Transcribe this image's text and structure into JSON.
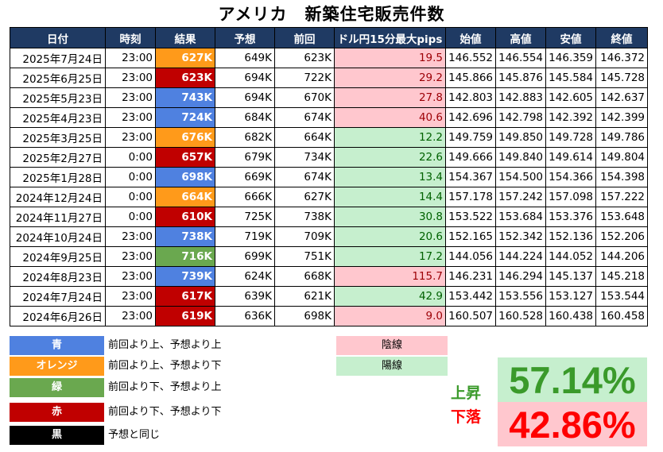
{
  "title": "アメリカ　新築住宅販売件数",
  "headers": [
    "日付",
    "時刻",
    "結果",
    "予想",
    "前回",
    "ドル円15分最大pips",
    "始値",
    "高値",
    "安値",
    "終値"
  ],
  "rows": [
    {
      "date": "2025年7月24日",
      "time": "23:00",
      "result": "627K",
      "result_color": "orange",
      "forecast": "649K",
      "previous": "623K",
      "pips": "19.5",
      "pips_type": "neg",
      "open": "146.552",
      "high": "146.554",
      "low": "146.359",
      "close": "146.372"
    },
    {
      "date": "2025年6月25日",
      "time": "23:00",
      "result": "623K",
      "result_color": "red",
      "forecast": "694K",
      "previous": "722K",
      "pips": "29.2",
      "pips_type": "neg",
      "open": "145.866",
      "high": "145.876",
      "low": "145.584",
      "close": "145.728"
    },
    {
      "date": "2025年5月23日",
      "time": "23:00",
      "result": "743K",
      "result_color": "blue",
      "forecast": "694K",
      "previous": "670K",
      "pips": "27.8",
      "pips_type": "neg",
      "open": "142.803",
      "high": "142.883",
      "low": "142.605",
      "close": "142.637"
    },
    {
      "date": "2025年4月23日",
      "time": "23:00",
      "result": "724K",
      "result_color": "blue",
      "forecast": "684K",
      "previous": "674K",
      "pips": "40.6",
      "pips_type": "neg",
      "open": "142.696",
      "high": "142.798",
      "low": "142.392",
      "close": "142.399"
    },
    {
      "date": "2025年3月25日",
      "time": "23:00",
      "result": "676K",
      "result_color": "orange",
      "forecast": "682K",
      "previous": "664K",
      "pips": "12.2",
      "pips_type": "pos",
      "open": "149.759",
      "high": "149.850",
      "low": "149.728",
      "close": "149.786"
    },
    {
      "date": "2025年2月27日",
      "time": "0:00",
      "result": "657K",
      "result_color": "red",
      "forecast": "679K",
      "previous": "734K",
      "pips": "22.6",
      "pips_type": "pos",
      "open": "149.666",
      "high": "149.840",
      "low": "149.614",
      "close": "149.804"
    },
    {
      "date": "2025年1月28日",
      "time": "0:00",
      "result": "698K",
      "result_color": "blue",
      "forecast": "669K",
      "previous": "674K",
      "pips": "13.4",
      "pips_type": "pos",
      "open": "154.367",
      "high": "154.500",
      "low": "154.366",
      "close": "154.398"
    },
    {
      "date": "2024年12月24日",
      "time": "0:00",
      "result": "664K",
      "result_color": "orange",
      "forecast": "666K",
      "previous": "627K",
      "pips": "14.4",
      "pips_type": "pos",
      "open": "157.178",
      "high": "157.242",
      "low": "157.098",
      "close": "157.222"
    },
    {
      "date": "2024年11月27日",
      "time": "0:00",
      "result": "610K",
      "result_color": "red",
      "forecast": "725K",
      "previous": "738K",
      "pips": "30.8",
      "pips_type": "pos",
      "open": "153.522",
      "high": "153.684",
      "low": "153.376",
      "close": "153.648"
    },
    {
      "date": "2024年10月24日",
      "time": "23:00",
      "result": "738K",
      "result_color": "blue",
      "forecast": "719K",
      "previous": "709K",
      "pips": "20.6",
      "pips_type": "pos",
      "open": "152.165",
      "high": "152.342",
      "low": "152.136",
      "close": "152.206"
    },
    {
      "date": "2024年9月25日",
      "time": "23:00",
      "result": "716K",
      "result_color": "green",
      "forecast": "699K",
      "previous": "751K",
      "pips": "17.2",
      "pips_type": "pos",
      "open": "144.056",
      "high": "144.224",
      "low": "144.052",
      "close": "144.206"
    },
    {
      "date": "2024年8月23日",
      "time": "23:00",
      "result": "739K",
      "result_color": "blue",
      "forecast": "624K",
      "previous": "668K",
      "pips": "115.7",
      "pips_type": "neg",
      "open": "146.231",
      "high": "146.294",
      "low": "145.137",
      "close": "145.218"
    },
    {
      "date": "2024年7月24日",
      "time": "23:00",
      "result": "617K",
      "result_color": "red",
      "forecast": "639K",
      "previous": "621K",
      "pips": "42.9",
      "pips_type": "pos",
      "open": "153.442",
      "high": "153.556",
      "low": "153.127",
      "close": "153.544"
    },
    {
      "date": "2024年6月26日",
      "time": "23:00",
      "result": "619K",
      "result_color": "red",
      "forecast": "636K",
      "previous": "698K",
      "pips": "9.0",
      "pips_type": "neg",
      "open": "160.507",
      "high": "160.528",
      "low": "160.438",
      "close": "160.458"
    }
  ],
  "legend": [
    {
      "color": "blue",
      "label": "青",
      "text": "前回より上、予想より上"
    },
    {
      "color": "orange",
      "label": "オレンジ",
      "text": "前回より上、予想より下"
    },
    {
      "color": "green",
      "label": "緑",
      "text": "前回より下、予想より上"
    },
    {
      "color": "red",
      "label": "赤",
      "text": "前回より下、予想より下"
    },
    {
      "color": "black",
      "label": "黒",
      "text": "予想と同じ"
    }
  ],
  "candles": {
    "negative": "陰線",
    "positive": "陽線"
  },
  "stats": {
    "up_label": "上昇",
    "up_value": "57.14%",
    "down_label": "下落",
    "down_value": "42.86%"
  },
  "colors": {
    "header_bg": "#1f3a63",
    "blue": "#4f81e0",
    "orange": "#ff9a1a",
    "green": "#6aa84f",
    "red": "#c00000",
    "black": "#000000",
    "neg_bg": "#ffc7ce",
    "pos_bg": "#c6efce",
    "up_text": "#3a9a2a",
    "down_text": "#ff0000"
  }
}
